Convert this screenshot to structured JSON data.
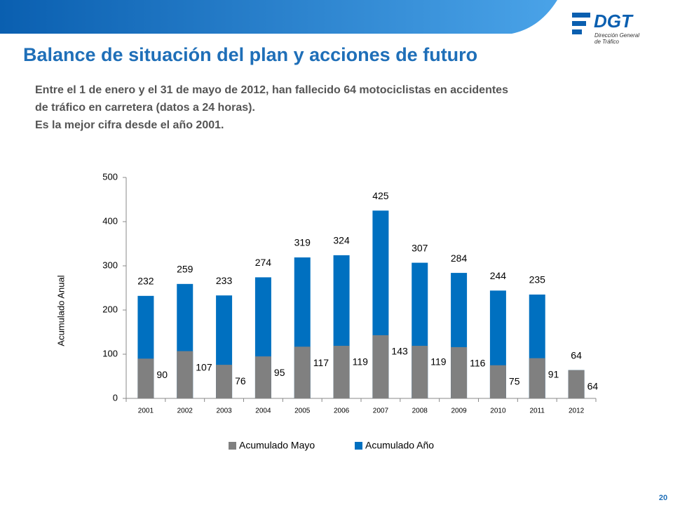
{
  "header": {
    "title": "Balance de situación del plan y acciones de futuro",
    "body": [
      "Entre el 1 de enero y el 31 de mayo de 2012, han fallecido 64 motociclistas en accidentes",
      "de tráfico en carretera (datos a 24 horas).",
      "Es la mejor cifra desde el año 2001."
    ],
    "logo": {
      "name": "DGT",
      "line1": "Dirección General",
      "line2": "de Tráfico"
    },
    "page_number": "20"
  },
  "chart_data": {
    "type": "overlap_bar",
    "ylabel": "Acumulado Anual",
    "categories": [
      "2001",
      "2002",
      "2003",
      "2004",
      "2005",
      "2006",
      "2007",
      "2008",
      "2009",
      "2010",
      "2011",
      "2012"
    ],
    "series": [
      {
        "name": "Acumulado Mayo",
        "color": "#808080",
        "values": [
          90,
          107,
          76,
          95,
          117,
          119,
          143,
          119,
          116,
          75,
          91,
          64
        ]
      },
      {
        "name": "Acumulado Año",
        "color": "#0070c0",
        "values": [
          232,
          259,
          233,
          274,
          319,
          324,
          425,
          307,
          284,
          244,
          235,
          64
        ]
      }
    ],
    "ylim": [
      0,
      500
    ],
    "yticks": [
      0,
      100,
      200,
      300,
      400,
      500
    ],
    "legend": "bottom"
  }
}
